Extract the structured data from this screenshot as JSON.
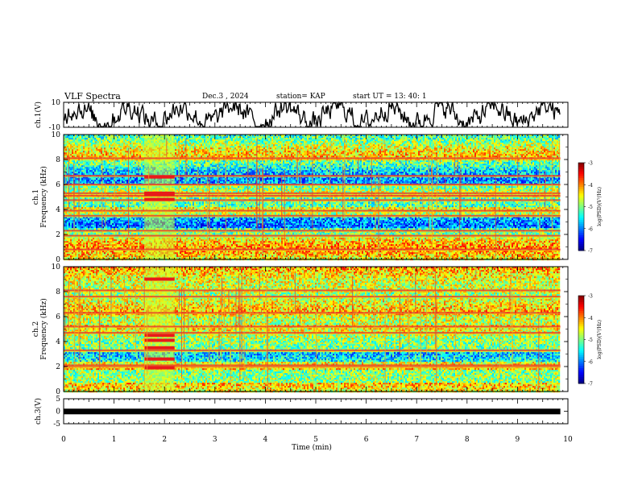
{
  "header": {
    "title": "VLF Spectra",
    "date": "Dec.3  , 2024",
    "station": "station= KAP",
    "start": "start  UT  =   13: 40: 1"
  },
  "chart_data": [
    {
      "type": "line",
      "id": "ch1-waveform",
      "ylabel": "ch.1(V)",
      "ylim": [
        -10,
        10
      ],
      "yticks": [
        10,
        -10
      ],
      "xlim": [
        0,
        10
      ],
      "description_values": "Noisy waveform oscillating roughly between -8 and +8 V over 0 to 9.85 min",
      "x_end": 9.85
    },
    {
      "type": "heatmap",
      "id": "ch1-spectrogram",
      "ylabel": "ch.1\nFrequency (kHz)",
      "ylim": [
        0,
        10
      ],
      "yticks": [
        0,
        2,
        4,
        6,
        8,
        10
      ],
      "xlim": [
        0,
        10
      ],
      "x_end": 9.85,
      "colorbar": {
        "label": "log(PSD)(V²/Hz)",
        "ticks": [
          -3,
          -4,
          -5,
          -6,
          -7
        ],
        "range": [
          -7,
          -3
        ]
      },
      "strong_bands_khz": [
        0.8,
        1.9,
        2.3,
        3.5,
        3.9,
        4.75,
        5.1,
        5.3,
        6.0,
        6.7,
        8.1
      ],
      "burst_interval_min": [
        1.6,
        2.2
      ],
      "burst_lines_khz": [
        5.2,
        5.3,
        6.6,
        4.8
      ]
    },
    {
      "type": "heatmap",
      "id": "ch2-spectrogram",
      "ylabel": "ch.2\nFrequency (kHz)",
      "ylim": [
        0,
        10
      ],
      "yticks": [
        0,
        2,
        4,
        6,
        8,
        10
      ],
      "xlim": [
        0,
        10
      ],
      "x_end": 9.85,
      "colorbar": {
        "label": "log(PSD)(V²/Hz)",
        "ticks": [
          -3,
          -4,
          -5,
          -6,
          -7
        ],
        "range": [
          -7,
          -3
        ]
      },
      "strong_bands_khz": [
        2.0,
        2.1,
        3.3,
        4.7,
        5.2,
        6.3,
        7.6,
        8.1
      ],
      "burst_interval_min": [
        1.6,
        2.2
      ],
      "burst_lines_khz": [
        9.0,
        4.5,
        4.1,
        3.5,
        2.6,
        1.9
      ]
    },
    {
      "type": "line",
      "id": "ch3-waveform",
      "ylabel": "ch.3(V)",
      "ylim": [
        -5,
        5
      ],
      "yticks": [
        5,
        0,
        -5
      ],
      "xlim": [
        0,
        10
      ],
      "x_end": 9.85,
      "value": -0.1
    }
  ],
  "xaxis": {
    "label": "Time  (min)",
    "ticks": [
      0,
      1,
      2,
      3,
      4,
      5,
      6,
      7,
      8,
      9,
      10
    ]
  }
}
